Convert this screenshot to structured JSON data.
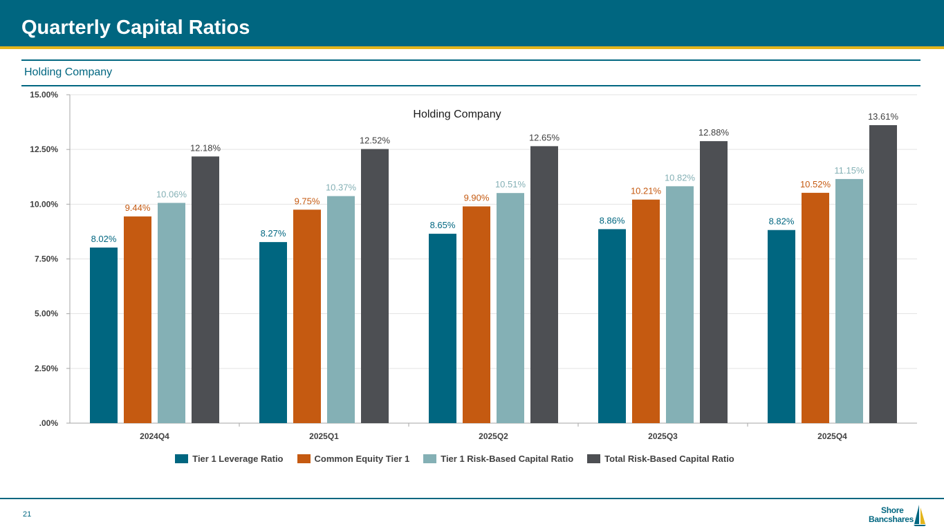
{
  "header": {
    "title": "Quarterly Capital Ratios"
  },
  "section": {
    "subtitle": "Holding Company"
  },
  "footer": {
    "page_number": "21",
    "logo_line1": "Shore",
    "logo_line2": "Bancshares",
    "logo_icon": "sailboat-icon"
  },
  "colors": {
    "header_bg": "#006680",
    "accent_gold": "#e3b51c",
    "series": [
      "#006680",
      "#c55a11",
      "#84b0b5",
      "#4d4f53"
    ],
    "label_colors": [
      "#006680",
      "#c55a11",
      "#84b0b5",
      "#404040"
    ]
  },
  "chart_data": {
    "type": "bar",
    "title": "Holding Company",
    "categories": [
      "2024Q4",
      "2025Q1",
      "2025Q2",
      "2025Q3",
      "2025Q4"
    ],
    "series": [
      {
        "name": "Tier 1 Leverage Ratio",
        "values": [
          8.02,
          8.27,
          8.65,
          8.86,
          8.82
        ],
        "labels": [
          "8.02%",
          "8.27%",
          "8.65%",
          "8.86%",
          "8.82%"
        ]
      },
      {
        "name": "Common Equity Tier 1",
        "values": [
          9.44,
          9.75,
          9.9,
          10.21,
          10.52
        ],
        "labels": [
          "9.44%",
          "9.75%",
          "9.90%",
          "10.21%",
          "10.52%"
        ]
      },
      {
        "name": "Tier 1 Risk-Based Capital Ratio",
        "values": [
          10.06,
          10.37,
          10.51,
          10.82,
          11.15
        ],
        "labels": [
          "10.06%",
          "10.37%",
          "10.51%",
          "10.82%",
          "11.15%"
        ]
      },
      {
        "name": "Total Risk-Based Capital Ratio",
        "values": [
          12.18,
          12.52,
          12.65,
          12.88,
          13.61
        ],
        "labels": [
          "12.18%",
          "12.52%",
          "12.65%",
          "12.88%",
          "13.61%"
        ]
      }
    ],
    "yticks": [
      0,
      2.5,
      5,
      7.5,
      10,
      12.5,
      15
    ],
    "ytick_labels": [
      ".00%",
      "2.50%",
      "5.00%",
      "7.50%",
      "10.00%",
      "12.50%",
      "15.00%"
    ],
    "ylim": [
      0,
      15
    ],
    "xlabel": "",
    "ylabel": "",
    "grid": true,
    "legend_position": "bottom"
  }
}
